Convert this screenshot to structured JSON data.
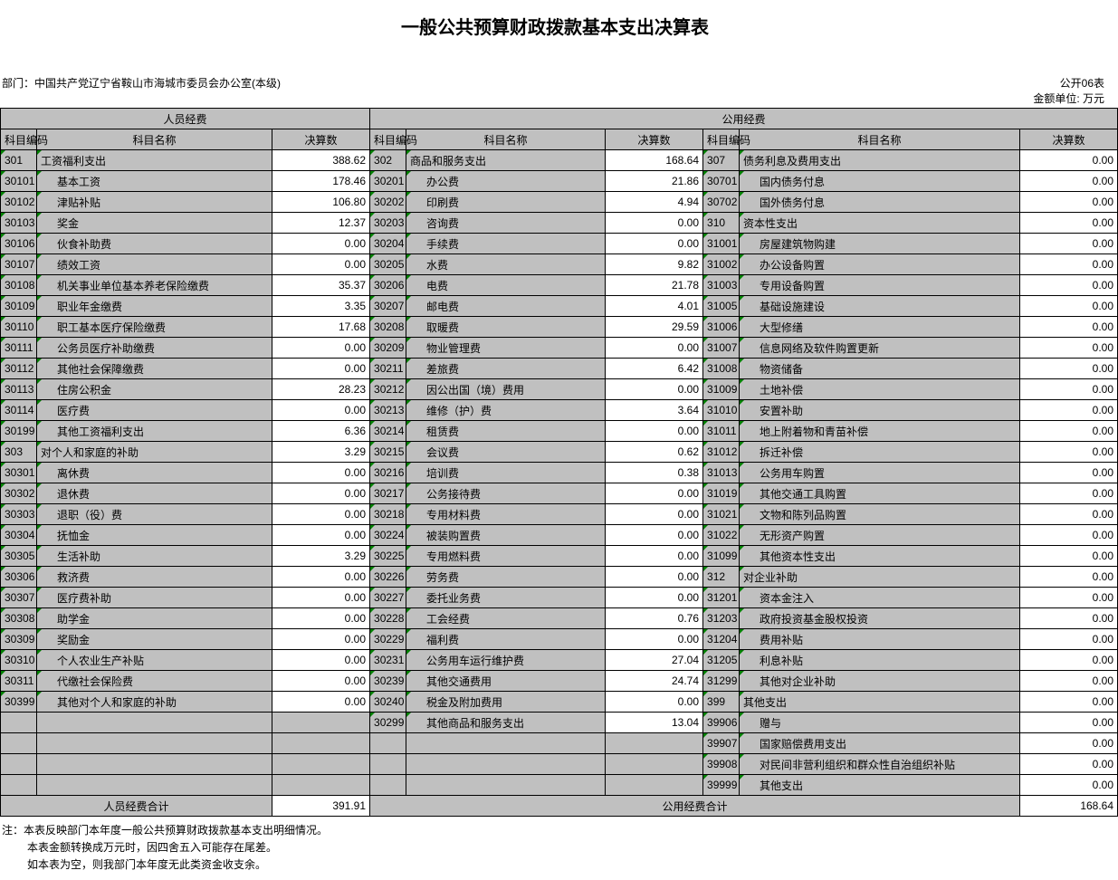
{
  "title": "一般公共预算财政拨款基本支出决算表",
  "sheet_no": "公开06表",
  "dept_label": "部门：",
  "dept": "中国共产党辽宁省鞍山市海城市委员会办公室(本级)",
  "unit": "金额单位: 万元",
  "colors": {
    "header_bg": "#c0c0c0",
    "value_bg": "#ffffff",
    "border": "#000000",
    "marker": "#008000"
  },
  "columns": {
    "group_personnel": "人员经费",
    "group_public": "公用经费",
    "code": "科目编码",
    "name": "科目名称",
    "value": "决算数"
  },
  "sections": [
    {
      "rows": [
        {
          "code": "301",
          "name": "工资福利支出",
          "value": "388.62",
          "indent": 0
        },
        {
          "code": "30101",
          "name": "基本工资",
          "value": "178.46",
          "indent": 1
        },
        {
          "code": "30102",
          "name": "津贴补贴",
          "value": "106.80",
          "indent": 1
        },
        {
          "code": "30103",
          "name": "奖金",
          "value": "12.37",
          "indent": 1
        },
        {
          "code": "30106",
          "name": "伙食补助费",
          "value": "0.00",
          "indent": 1
        },
        {
          "code": "30107",
          "name": "绩效工资",
          "value": "0.00",
          "indent": 1
        },
        {
          "code": "30108",
          "name": "机关事业单位基本养老保险缴费",
          "value": "35.37",
          "indent": 1
        },
        {
          "code": "30109",
          "name": "职业年金缴费",
          "value": "3.35",
          "indent": 1
        },
        {
          "code": "30110",
          "name": "职工基本医疗保险缴费",
          "value": "17.68",
          "indent": 1
        },
        {
          "code": "30111",
          "name": "公务员医疗补助缴费",
          "value": "0.00",
          "indent": 1
        },
        {
          "code": "30112",
          "name": "其他社会保障缴费",
          "value": "0.00",
          "indent": 1
        },
        {
          "code": "30113",
          "name": "住房公积金",
          "value": "28.23",
          "indent": 1
        },
        {
          "code": "30114",
          "name": "医疗费",
          "value": "0.00",
          "indent": 1
        },
        {
          "code": "30199",
          "name": "其他工资福利支出",
          "value": "6.36",
          "indent": 1
        },
        {
          "code": "303",
          "name": "对个人和家庭的补助",
          "value": "3.29",
          "indent": 0
        },
        {
          "code": "30301",
          "name": "离休费",
          "value": "0.00",
          "indent": 1
        },
        {
          "code": "30302",
          "name": "退休费",
          "value": "0.00",
          "indent": 1
        },
        {
          "code": "30303",
          "name": "退职（役）费",
          "value": "0.00",
          "indent": 1
        },
        {
          "code": "30304",
          "name": "抚恤金",
          "value": "0.00",
          "indent": 1
        },
        {
          "code": "30305",
          "name": "生活补助",
          "value": "3.29",
          "indent": 1
        },
        {
          "code": "30306",
          "name": "救济费",
          "value": "0.00",
          "indent": 1
        },
        {
          "code": "30307",
          "name": "医疗费补助",
          "value": "0.00",
          "indent": 1
        },
        {
          "code": "30308",
          "name": "助学金",
          "value": "0.00",
          "indent": 1
        },
        {
          "code": "30309",
          "name": "奖励金",
          "value": "0.00",
          "indent": 1
        },
        {
          "code": "30310",
          "name": "个人农业生产补贴",
          "value": "0.00",
          "indent": 1
        },
        {
          "code": "30311",
          "name": "代缴社会保险费",
          "value": "0.00",
          "indent": 1
        },
        {
          "code": "30399",
          "name": "其他对个人和家庭的补助",
          "value": "0.00",
          "indent": 1
        },
        {
          "code": "",
          "name": "",
          "value": "",
          "indent": 0
        },
        {
          "code": "",
          "name": "",
          "value": "",
          "indent": 0
        },
        {
          "code": "",
          "name": "",
          "value": "",
          "indent": 0
        },
        {
          "code": "",
          "name": "",
          "value": "",
          "indent": 0
        }
      ],
      "total_label": "人员经费合计",
      "total_value": "391.91"
    },
    {
      "rows": [
        {
          "code": "302",
          "name": "商品和服务支出",
          "value": "168.64",
          "indent": 0
        },
        {
          "code": "30201",
          "name": "办公费",
          "value": "21.86",
          "indent": 1
        },
        {
          "code": "30202",
          "name": "印刷费",
          "value": "4.94",
          "indent": 1
        },
        {
          "code": "30203",
          "name": "咨询费",
          "value": "0.00",
          "indent": 1
        },
        {
          "code": "30204",
          "name": "手续费",
          "value": "0.00",
          "indent": 1
        },
        {
          "code": "30205",
          "name": "水费",
          "value": "9.82",
          "indent": 1
        },
        {
          "code": "30206",
          "name": "电费",
          "value": "21.78",
          "indent": 1
        },
        {
          "code": "30207",
          "name": "邮电费",
          "value": "4.01",
          "indent": 1
        },
        {
          "code": "30208",
          "name": "取暖费",
          "value": "29.59",
          "indent": 1
        },
        {
          "code": "30209",
          "name": "物业管理费",
          "value": "0.00",
          "indent": 1
        },
        {
          "code": "30211",
          "name": "差旅费",
          "value": "6.42",
          "indent": 1
        },
        {
          "code": "30212",
          "name": "因公出国（境）费用",
          "value": "0.00",
          "indent": 1
        },
        {
          "code": "30213",
          "name": "维修（护）费",
          "value": "3.64",
          "indent": 1
        },
        {
          "code": "30214",
          "name": "租赁费",
          "value": "0.00",
          "indent": 1
        },
        {
          "code": "30215",
          "name": "会议费",
          "value": "0.62",
          "indent": 1
        },
        {
          "code": "30216",
          "name": "培训费",
          "value": "0.38",
          "indent": 1
        },
        {
          "code": "30217",
          "name": "公务接待费",
          "value": "0.00",
          "indent": 1
        },
        {
          "code": "30218",
          "name": "专用材料费",
          "value": "0.00",
          "indent": 1
        },
        {
          "code": "30224",
          "name": "被装购置费",
          "value": "0.00",
          "indent": 1
        },
        {
          "code": "30225",
          "name": "专用燃料费",
          "value": "0.00",
          "indent": 1
        },
        {
          "code": "30226",
          "name": "劳务费",
          "value": "0.00",
          "indent": 1
        },
        {
          "code": "30227",
          "name": "委托业务费",
          "value": "0.00",
          "indent": 1
        },
        {
          "code": "30228",
          "name": "工会经费",
          "value": "0.76",
          "indent": 1
        },
        {
          "code": "30229",
          "name": "福利费",
          "value": "0.00",
          "indent": 1
        },
        {
          "code": "30231",
          "name": "公务用车运行维护费",
          "value": "27.04",
          "indent": 1
        },
        {
          "code": "30239",
          "name": "其他交通费用",
          "value": "24.74",
          "indent": 1
        },
        {
          "code": "30240",
          "name": "税金及附加费用",
          "value": "0.00",
          "indent": 1
        },
        {
          "code": "30299",
          "name": "其他商品和服务支出",
          "value": "13.04",
          "indent": 1
        },
        {
          "code": "",
          "name": "",
          "value": "",
          "indent": 0
        },
        {
          "code": "",
          "name": "",
          "value": "",
          "indent": 0
        },
        {
          "code": "",
          "name": "",
          "value": "",
          "indent": 0
        }
      ]
    },
    {
      "rows": [
        {
          "code": "307",
          "name": "债务利息及费用支出",
          "value": "0.00",
          "indent": 0
        },
        {
          "code": "30701",
          "name": "国内债务付息",
          "value": "0.00",
          "indent": 1
        },
        {
          "code": "30702",
          "name": "国外债务付息",
          "value": "0.00",
          "indent": 1
        },
        {
          "code": "310",
          "name": "资本性支出",
          "value": "0.00",
          "indent": 0
        },
        {
          "code": "31001",
          "name": "房屋建筑物购建",
          "value": "0.00",
          "indent": 1
        },
        {
          "code": "31002",
          "name": "办公设备购置",
          "value": "0.00",
          "indent": 1
        },
        {
          "code": "31003",
          "name": "专用设备购置",
          "value": "0.00",
          "indent": 1
        },
        {
          "code": "31005",
          "name": "基础设施建设",
          "value": "0.00",
          "indent": 1
        },
        {
          "code": "31006",
          "name": "大型修缮",
          "value": "0.00",
          "indent": 1
        },
        {
          "code": "31007",
          "name": "信息网络及软件购置更新",
          "value": "0.00",
          "indent": 1
        },
        {
          "code": "31008",
          "name": "物资储备",
          "value": "0.00",
          "indent": 1
        },
        {
          "code": "31009",
          "name": "土地补偿",
          "value": "0.00",
          "indent": 1
        },
        {
          "code": "31010",
          "name": "安置补助",
          "value": "0.00",
          "indent": 1
        },
        {
          "code": "31011",
          "name": "地上附着物和青苗补偿",
          "value": "0.00",
          "indent": 1
        },
        {
          "code": "31012",
          "name": "拆迁补偿",
          "value": "0.00",
          "indent": 1
        },
        {
          "code": "31013",
          "name": "公务用车购置",
          "value": "0.00",
          "indent": 1
        },
        {
          "code": "31019",
          "name": "其他交通工具购置",
          "value": "0.00",
          "indent": 1
        },
        {
          "code": "31021",
          "name": "文物和陈列品购置",
          "value": "0.00",
          "indent": 1
        },
        {
          "code": "31022",
          "name": "无形资产购置",
          "value": "0.00",
          "indent": 1
        },
        {
          "code": "31099",
          "name": "其他资本性支出",
          "value": "0.00",
          "indent": 1
        },
        {
          "code": "312",
          "name": "对企业补助",
          "value": "0.00",
          "indent": 0
        },
        {
          "code": "31201",
          "name": "资本金注入",
          "value": "0.00",
          "indent": 1
        },
        {
          "code": "31203",
          "name": "政府投资基金股权投资",
          "value": "0.00",
          "indent": 1
        },
        {
          "code": "31204",
          "name": "费用补贴",
          "value": "0.00",
          "indent": 1
        },
        {
          "code": "31205",
          "name": "利息补贴",
          "value": "0.00",
          "indent": 1
        },
        {
          "code": "31299",
          "name": "其他对企业补助",
          "value": "0.00",
          "indent": 1
        },
        {
          "code": "399",
          "name": "其他支出",
          "value": "0.00",
          "indent": 0
        },
        {
          "code": "39906",
          "name": "赠与",
          "value": "0.00",
          "indent": 1
        },
        {
          "code": "39907",
          "name": "国家赔偿费用支出",
          "value": "0.00",
          "indent": 1
        },
        {
          "code": "39908",
          "name": "对民间非营利组织和群众性自治组织补贴",
          "value": "0.00",
          "indent": 1
        },
        {
          "code": "39999",
          "name": "其他支出",
          "value": "0.00",
          "indent": 1
        }
      ],
      "total_label": "公用经费合计",
      "total_value": "168.64"
    }
  ],
  "notes": [
    "注：本表反映部门本年度一般公共预算财政拨款基本支出明细情况。",
    "本表金额转换成万元时，因四舍五入可能存在尾差。",
    "如本表为空，则我部门本年度无此类资金收支余。"
  ]
}
